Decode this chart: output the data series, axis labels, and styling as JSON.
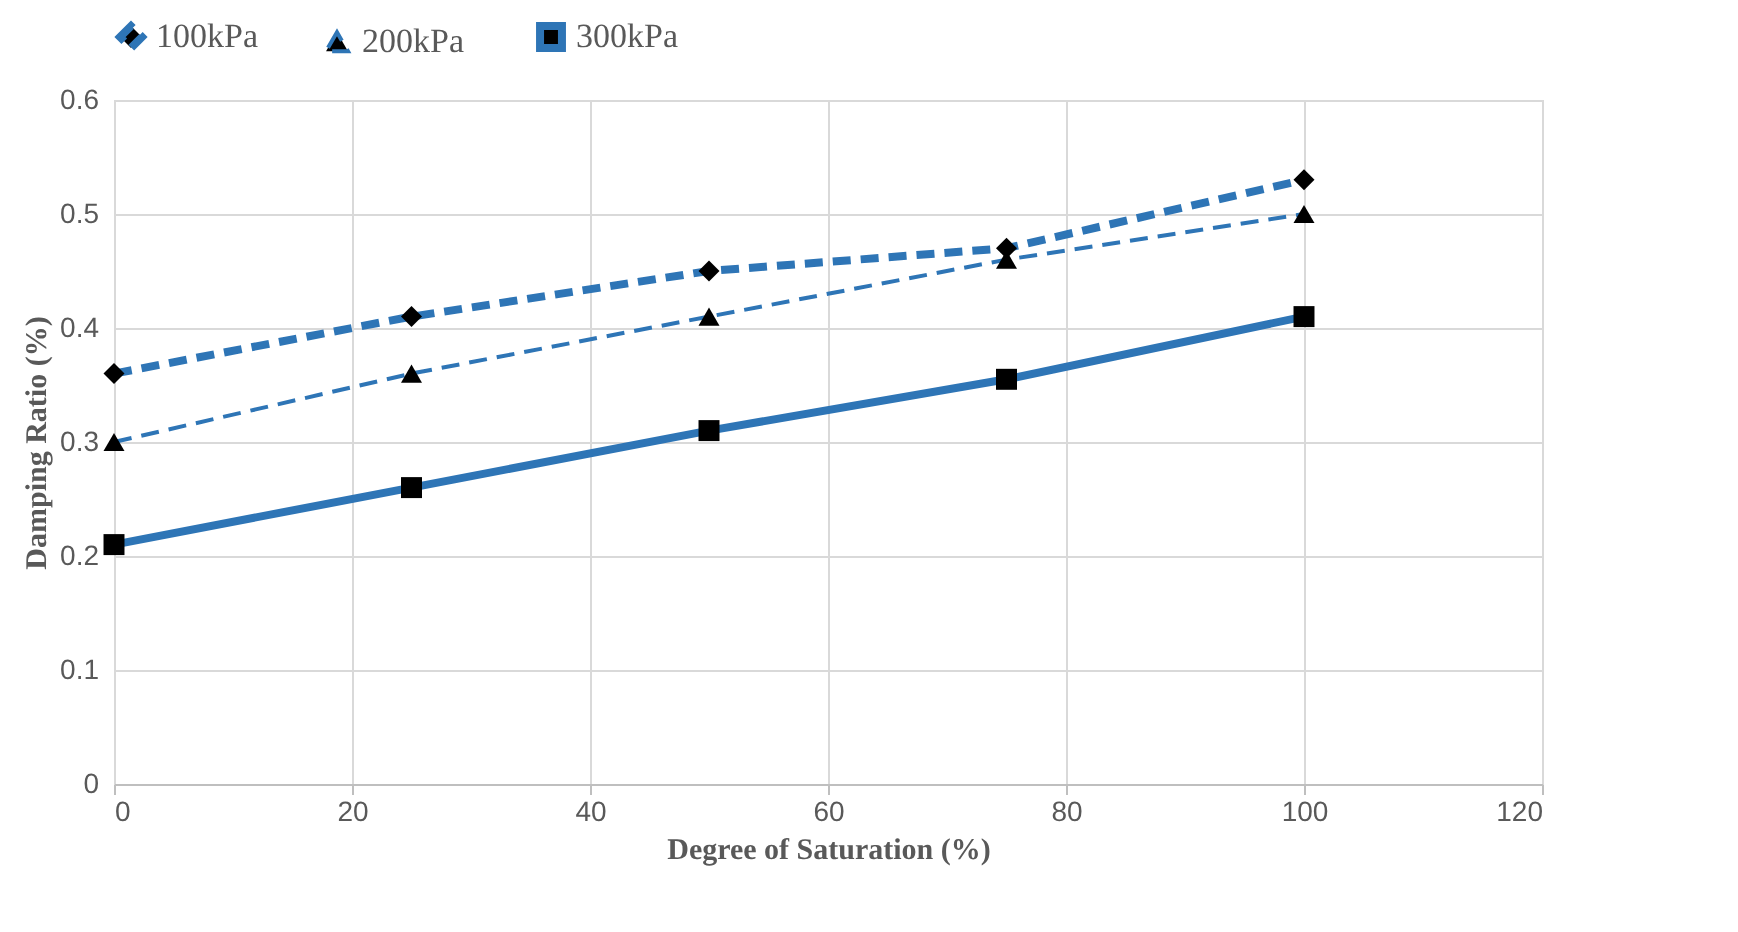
{
  "chart_data": {
    "type": "line",
    "xlabel": "Degree of Saturation (%)",
    "ylabel": "Damping Ratio (%)",
    "x": [
      0,
      25,
      50,
      75,
      100
    ],
    "series": [
      {
        "name": "100kPa",
        "color": "#2e75b6",
        "values": [
          0.36,
          0.41,
          0.45,
          0.47,
          0.53
        ],
        "line_style": "dashed",
        "marker": "diamond"
      },
      {
        "name": "200kPa",
        "color": "#2e75b6",
        "values": [
          0.3,
          0.36,
          0.41,
          0.46,
          0.5
        ],
        "line_style": "dashed",
        "marker": "triangle"
      },
      {
        "name": "300kPa",
        "color": "#2e75b6",
        "values": [
          0.21,
          0.26,
          0.31,
          0.355,
          0.41
        ],
        "line_style": "solid",
        "marker": "square"
      }
    ],
    "xlim": [
      0,
      120
    ],
    "xticks": [
      0,
      20,
      40,
      60,
      80,
      100,
      120
    ],
    "ylim": [
      0,
      0.6
    ],
    "yticks": [
      0,
      0.1,
      0.2,
      0.3,
      0.4,
      0.5,
      0.6
    ],
    "grid": true,
    "legend": "top"
  }
}
